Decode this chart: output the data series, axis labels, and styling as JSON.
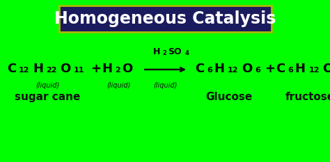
{
  "bg_color": "#00ff00",
  "title_text": "Homogeneous Catalysis",
  "title_bg": "#1a1a5e",
  "title_color": "#ffffff",
  "title_border_color": "#aabb00",
  "formula_color": "#000000",
  "label_color": "#111111",
  "arrow_color": "#111111",
  "liquid_label": "(liquid)",
  "sugar_label": "sugar cane",
  "glucose_label": "Glucose",
  "fructose_label": "fructose",
  "plus_sign": "+",
  "title_fontsize": 17,
  "formula_fontsize": 13,
  "sub_fontsize": 8,
  "liquid_fontsize": 7,
  "name_fontsize": 11,
  "cat_fontsize": 9,
  "cat_sub_fontsize": 6
}
